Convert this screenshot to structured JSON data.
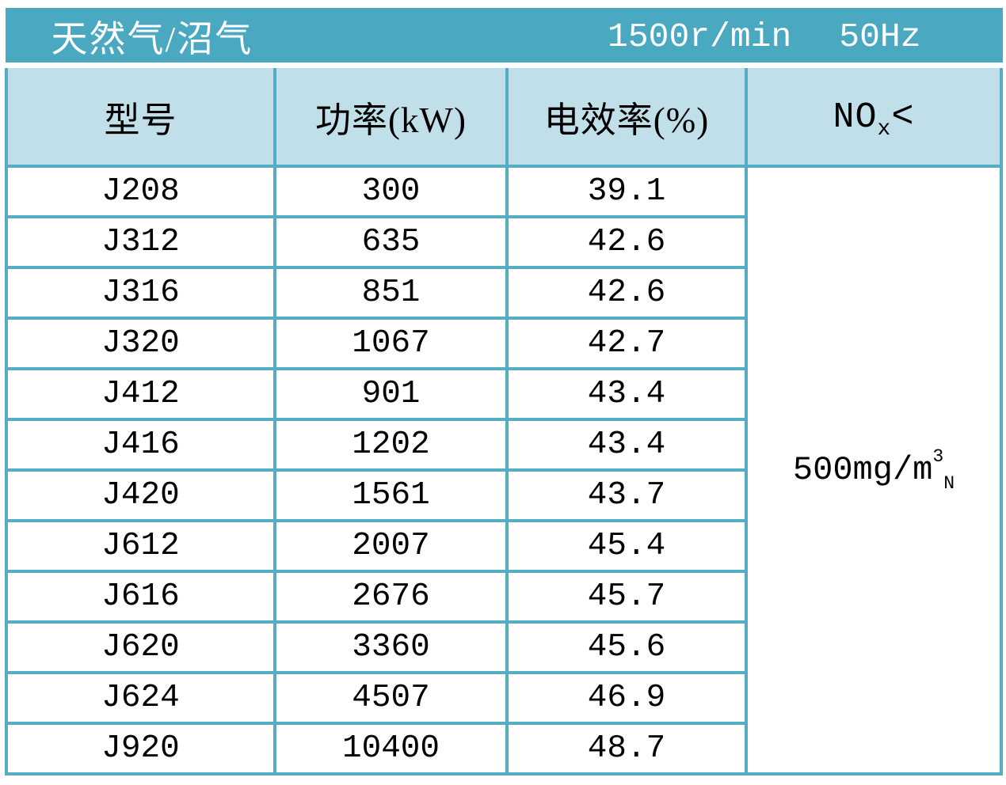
{
  "title_bar": {
    "fuel_type": "天然气/沼气",
    "speed": "1500r/min",
    "frequency": "50Hz"
  },
  "columns": [
    "型号",
    "功率(kW)",
    "电效率(%)"
  ],
  "nox": {
    "header_base": "NO",
    "header_sub": "x",
    "header_lt": "<",
    "value_base": "500mg/m",
    "value_sup": "3",
    "value_sub": "N"
  },
  "rows": [
    {
      "model": "J208",
      "power_kw": "300",
      "efficiency_pct": "39.1"
    },
    {
      "model": "J312",
      "power_kw": "635",
      "efficiency_pct": "42.6"
    },
    {
      "model": "J316",
      "power_kw": "851",
      "efficiency_pct": "42.6"
    },
    {
      "model": "J320",
      "power_kw": "1067",
      "efficiency_pct": "42.7"
    },
    {
      "model": "J412",
      "power_kw": "901",
      "efficiency_pct": "43.4"
    },
    {
      "model": "J416",
      "power_kw": "1202",
      "efficiency_pct": "43.4"
    },
    {
      "model": "J420",
      "power_kw": "1561",
      "efficiency_pct": "43.7"
    },
    {
      "model": "J612",
      "power_kw": "2007",
      "efficiency_pct": "45.4"
    },
    {
      "model": "J616",
      "power_kw": "2676",
      "efficiency_pct": "45.7"
    },
    {
      "model": "J620",
      "power_kw": "3360",
      "efficiency_pct": "45.6"
    },
    {
      "model": "J624",
      "power_kw": "4507",
      "efficiency_pct": "46.9"
    },
    {
      "model": "J920",
      "power_kw": "10400",
      "efficiency_pct": "48.7"
    }
  ],
  "colors": {
    "title_bar_bg": "#4aa8c0",
    "header_bg": "#c0dfe9",
    "border": "#55adc3",
    "title_text": "#ffffff",
    "cell_text": "#000000"
  },
  "chart_data": {
    "type": "table",
    "title": "天然气/沼气 1500r/min 50Hz",
    "categories": [
      "J208",
      "J312",
      "J316",
      "J320",
      "J412",
      "J416",
      "J420",
      "J612",
      "J616",
      "J620",
      "J624",
      "J920"
    ],
    "series": [
      {
        "name": "功率(kW)",
        "values": [
          300,
          635,
          851,
          1067,
          901,
          1202,
          1561,
          2007,
          2676,
          3360,
          4507,
          10400
        ]
      },
      {
        "name": "电效率(%)",
        "values": [
          39.1,
          42.6,
          42.6,
          42.7,
          43.4,
          43.4,
          43.7,
          45.4,
          45.7,
          45.6,
          46.9,
          48.7
        ]
      }
    ],
    "nox_limit": "NOx < 500mg/m3N"
  }
}
